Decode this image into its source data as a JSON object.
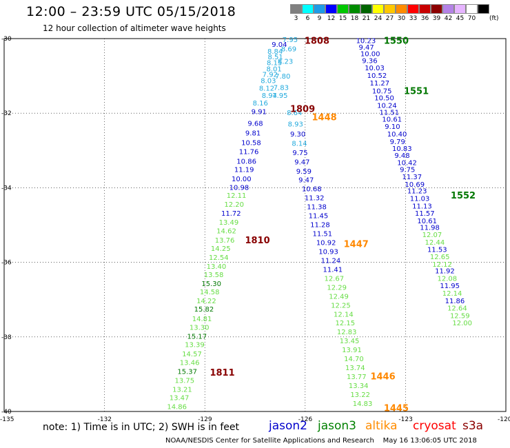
{
  "header": {
    "title": "12:00 – 23:59 UTC 05/15/2018",
    "subtitle": "12 hour collection of altimeter wave heights"
  },
  "legend": {
    "unit": "(ft)",
    "bins": [
      {
        "label": "3",
        "color": "#808080"
      },
      {
        "label": "6",
        "color": "#00ffff"
      },
      {
        "label": "9",
        "color": "#1e9be6"
      },
      {
        "label": "12",
        "color": "#0000ff"
      },
      {
        "label": "15",
        "color": "#00c800"
      },
      {
        "label": "18",
        "color": "#008c00"
      },
      {
        "label": "21",
        "color": "#006400"
      },
      {
        "label": "24",
        "color": "#ffff00"
      },
      {
        "label": "27",
        "color": "#ffc800"
      },
      {
        "label": "30",
        "color": "#ff8c00"
      },
      {
        "label": "33",
        "color": "#ff0000"
      },
      {
        "label": "36",
        "color": "#c80000"
      },
      {
        "label": "39",
        "color": "#8c0000"
      },
      {
        "label": "42",
        "color": "#b482e6"
      },
      {
        "label": "45",
        "color": "#e6b4ff"
      },
      {
        "label": "70",
        "color": "#ffffff"
      },
      {
        "label": "",
        "color": "#000000"
      }
    ]
  },
  "axes": {
    "lat_labels": [
      "-30",
      "-32",
      "-34",
      "-36",
      "-38",
      "-40"
    ],
    "lon_labels": [
      "-135",
      "-132",
      "-129",
      "-126",
      "-123",
      "-120"
    ]
  },
  "colors": {
    "jason2": "#0000cc",
    "jason3": "#008000",
    "altika": "#ff8c00",
    "cryosat": "#ff0000",
    "s3a": "#8b0000",
    "light_green": "#66dd44",
    "light_blue": "#22aadd",
    "label_green": "#007700",
    "time_orange": "#ff8800",
    "time_maroon": "#880000"
  },
  "time_labels": [
    {
      "text": "1808",
      "lat": -30.05,
      "lon": -126.02,
      "color": "#880000"
    },
    {
      "text": "1809",
      "lat": -31.88,
      "lon": -126.45,
      "color": "#880000"
    },
    {
      "text": "1810",
      "lat": -35.4,
      "lon": -127.8,
      "color": "#880000"
    },
    {
      "text": "1811",
      "lat": -38.95,
      "lon": -128.85,
      "color": "#880000"
    },
    {
      "text": "1550",
      "lat": -30.05,
      "lon": -123.65,
      "color": "#007700"
    },
    {
      "text": "1551",
      "lat": -31.4,
      "lon": -123.05,
      "color": "#007700"
    },
    {
      "text": "1552",
      "lat": -34.2,
      "lon": -121.65,
      "color": "#007700"
    },
    {
      "text": "1448",
      "lat": -32.1,
      "lon": -125.8,
      "color": "#ff8800"
    },
    {
      "text": "1447",
      "lat": -35.5,
      "lon": -124.85,
      "color": "#ff8800"
    },
    {
      "text": "1446",
      "lat": -39.05,
      "lon": -124.05,
      "color": "#ff8800"
    },
    {
      "text": "1445",
      "lat": -39.9,
      "lon": -123.65,
      "color": "#ff8800"
    }
  ],
  "tracks": [
    {
      "name": "jason2-left",
      "points": [
        [
          "9.04",
          -30.15,
          -127.0,
          "#0000cc"
        ],
        [
          "8.84",
          -30.33,
          -127.13,
          "#22aadd"
        ],
        [
          "8.51",
          -30.48,
          -127.12,
          "#22aadd"
        ],
        [
          "8.15",
          -30.64,
          -127.15,
          "#22aadd"
        ],
        [
          "8.01",
          -30.8,
          -127.16,
          "#22aadd"
        ],
        [
          "7.92",
          -30.95,
          -127.28,
          "#22aadd"
        ],
        [
          "8.03",
          -31.12,
          -127.33,
          "#22aadd"
        ],
        [
          "8.12",
          -31.32,
          -127.38,
          "#22aadd"
        ],
        [
          "8.94",
          -31.52,
          -127.3,
          "#22aadd"
        ],
        [
          "8.16",
          -31.72,
          -127.57,
          "#22aadd"
        ],
        [
          "9.91",
          -31.95,
          -127.61,
          "#0000cc"
        ],
        [
          "9.68",
          -32.26,
          -127.72,
          "#0000cc"
        ],
        [
          "9.81",
          -32.52,
          -127.79,
          "#0000cc"
        ],
        [
          "10.58",
          -32.78,
          -127.91,
          "#0000cc"
        ],
        [
          "11.76",
          -33.02,
          -127.98,
          "#0000cc"
        ],
        [
          "10.86",
          -33.28,
          -128.05,
          "#0000cc"
        ],
        [
          "11.19",
          -33.5,
          -128.12,
          "#0000cc"
        ],
        [
          "10.00",
          -33.75,
          -128.2,
          "#0000cc"
        ],
        [
          "10.98",
          -33.98,
          -128.27,
          "#0000cc"
        ],
        [
          "12.11",
          -34.2,
          -128.35,
          "#66dd44"
        ],
        [
          "12.20",
          -34.44,
          -128.42,
          "#66dd44"
        ],
        [
          "11.72",
          -34.68,
          -128.51,
          "#0000cc"
        ],
        [
          "13.49",
          -34.92,
          -128.58,
          "#66dd44"
        ],
        [
          "14.62",
          -35.15,
          -128.65,
          "#66dd44"
        ],
        [
          "13.76",
          -35.4,
          -128.7,
          "#66dd44"
        ],
        [
          "14.25",
          -35.62,
          -128.82,
          "#66dd44"
        ],
        [
          "12.54",
          -35.86,
          -128.88,
          "#66dd44"
        ],
        [
          "13.40",
          -36.1,
          -128.95,
          "#66dd44"
        ],
        [
          "13.58",
          -36.32,
          -129.03,
          "#66dd44"
        ],
        [
          "15.30",
          -36.56,
          -129.1,
          "#007700"
        ],
        [
          "14.58",
          -36.78,
          -129.15,
          "#66dd44"
        ],
        [
          "14.22",
          -37.02,
          -129.25,
          "#66dd44"
        ],
        [
          "15.82",
          -37.25,
          -129.32,
          "#007700"
        ],
        [
          "14.81",
          -37.5,
          -129.38,
          "#66dd44"
        ],
        [
          "13.30",
          -37.74,
          -129.46,
          "#66dd44"
        ],
        [
          "15.17",
          -37.98,
          -129.53,
          "#007700"
        ],
        [
          "13.39",
          -38.2,
          -129.6,
          "#66dd44"
        ],
        [
          "14.57",
          -38.45,
          -129.68,
          "#66dd44"
        ],
        [
          "13.46",
          -38.68,
          -129.75,
          "#66dd44"
        ],
        [
          "15.37",
          -38.92,
          -129.82,
          "#007700"
        ],
        [
          "13.75",
          -39.16,
          -129.9,
          "#66dd44"
        ],
        [
          "13.21",
          -39.4,
          -129.97,
          "#66dd44"
        ],
        [
          "13.47",
          -39.62,
          -130.06,
          "#66dd44"
        ],
        [
          "14.86",
          -39.86,
          -130.13,
          "#66dd44"
        ]
      ]
    },
    {
      "name": "cyan-top",
      "points": [
        [
          "7.95",
          -30.02,
          -126.68,
          "#22aadd"
        ],
        [
          "8.69",
          -30.27,
          -126.72,
          "#22aadd"
        ],
        [
          "8.23",
          -30.6,
          -126.82,
          "#22aadd"
        ],
        [
          "7.80",
          -31.0,
          -126.9,
          "#22aadd"
        ],
        [
          "7.83",
          -31.3,
          -126.95,
          "#22aadd"
        ],
        [
          "7.95",
          -31.52,
          -126.98,
          "#22aadd"
        ],
        [
          "8.64",
          -31.98,
          -126.55,
          "#22aadd"
        ],
        [
          "8.93",
          -32.28,
          -126.52,
          "#22aadd"
        ]
      ]
    },
    {
      "name": "altika-mid",
      "points": [
        [
          "9.30",
          -32.55,
          -126.45,
          "#0000cc"
        ],
        [
          "8.14",
          -32.8,
          -126.4,
          "#22aadd"
        ],
        [
          "9.75",
          -33.05,
          -126.38,
          "#0000cc"
        ],
        [
          "9.47",
          -33.3,
          -126.32,
          "#0000cc"
        ],
        [
          "9.59",
          -33.55,
          -126.27,
          "#0000cc"
        ],
        [
          "9.47",
          -33.78,
          -126.2,
          "#0000cc"
        ],
        [
          "10.68",
          -34.02,
          -126.1,
          "#0000cc"
        ],
        [
          "11.32",
          -34.26,
          -126.02,
          "#0000cc"
        ],
        [
          "11.38",
          -34.5,
          -125.95,
          "#0000cc"
        ],
        [
          "11.45",
          -34.74,
          -125.9,
          "#0000cc"
        ],
        [
          "11.28",
          -34.98,
          -125.85,
          "#0000cc"
        ],
        [
          "11.51",
          -35.22,
          -125.78,
          "#0000cc"
        ],
        [
          "10.92",
          -35.46,
          -125.67,
          "#0000cc"
        ],
        [
          "10.93",
          -35.7,
          -125.6,
          "#0000cc"
        ],
        [
          "11.24",
          -35.94,
          -125.53,
          "#0000cc"
        ],
        [
          "11.41",
          -36.18,
          -125.47,
          "#0000cc"
        ],
        [
          "12.67",
          -36.42,
          -125.43,
          "#66dd44"
        ],
        [
          "12.29",
          -36.66,
          -125.35,
          "#66dd44"
        ],
        [
          "12.49",
          -36.9,
          -125.29,
          "#66dd44"
        ],
        [
          "12.25",
          -37.14,
          -125.23,
          "#66dd44"
        ],
        [
          "12.14",
          -37.38,
          -125.15,
          "#66dd44"
        ],
        [
          "12.15",
          -37.62,
          -125.1,
          "#66dd44"
        ],
        [
          "12.83",
          -37.86,
          -125.05,
          "#66dd44"
        ],
        [
          "13.45",
          -38.1,
          -124.97,
          "#66dd44"
        ],
        [
          "13.91",
          -38.34,
          -124.9,
          "#66dd44"
        ],
        [
          "14.70",
          -38.58,
          -124.84,
          "#66dd44"
        ],
        [
          "13.74",
          -38.82,
          -124.8,
          "#66dd44"
        ],
        [
          "13.77",
          -39.06,
          -124.76,
          "#66dd44"
        ],
        [
          "13.34",
          -39.3,
          -124.7,
          "#66dd44"
        ],
        [
          "13.22",
          -39.54,
          -124.65,
          "#66dd44"
        ],
        [
          "14.83",
          -39.78,
          -124.58,
          "#66dd44"
        ]
      ]
    },
    {
      "name": "jason3-right",
      "points": [
        [
          "10.23",
          -30.05,
          -124.48,
          "#0000cc"
        ],
        [
          "9.47",
          -30.22,
          -124.4,
          "#0000cc"
        ],
        [
          "10.00",
          -30.4,
          -124.35,
          "#0000cc"
        ],
        [
          "9.36",
          -30.58,
          -124.3,
          "#0000cc"
        ],
        [
          "10.03",
          -30.78,
          -124.22,
          "#0000cc"
        ],
        [
          "10.52",
          -30.98,
          -124.15,
          "#0000cc"
        ],
        [
          "11.27",
          -31.18,
          -124.07,
          "#0000cc"
        ],
        [
          "10.75",
          -31.4,
          -124.0,
          "#0000cc"
        ],
        [
          "10.50",
          -31.58,
          -123.93,
          "#0000cc"
        ],
        [
          "10.24",
          -31.78,
          -123.85,
          "#0000cc"
        ],
        [
          "11.51",
          -31.97,
          -123.78,
          "#0000cc"
        ],
        [
          "10.61",
          -32.15,
          -123.7,
          "#0000cc"
        ],
        [
          "9.10",
          -32.35,
          -123.62,
          "#0000cc"
        ],
        [
          "10.40",
          -32.55,
          -123.55,
          "#0000cc"
        ],
        [
          "9.79",
          -32.75,
          -123.47,
          "#0000cc"
        ],
        [
          "10.83",
          -32.94,
          -123.4,
          "#0000cc"
        ],
        [
          "9.48",
          -33.12,
          -123.33,
          "#0000cc"
        ],
        [
          "10.42",
          -33.32,
          -123.25,
          "#0000cc"
        ],
        [
          "9.75",
          -33.5,
          -123.17,
          "#0000cc"
        ],
        [
          "11.37",
          -33.7,
          -123.1,
          "#0000cc"
        ],
        [
          "10.69",
          -33.9,
          -123.02,
          "#0000cc"
        ],
        [
          "11.23",
          -34.08,
          -122.95,
          "#0000cc"
        ],
        [
          "11.03",
          -34.28,
          -122.87,
          "#0000cc"
        ],
        [
          "11.13",
          -34.48,
          -122.8,
          "#0000cc"
        ],
        [
          "11.57",
          -34.68,
          -122.72,
          "#0000cc"
        ],
        [
          "10.61",
          -34.88,
          -122.65,
          "#0000cc"
        ],
        [
          "11.98",
          -35.06,
          -122.57,
          "#0000cc"
        ],
        [
          "12.07",
          -35.25,
          -122.5,
          "#66dd44"
        ],
        [
          "12.44",
          -35.45,
          -122.42,
          "#66dd44"
        ],
        [
          "11.53",
          -35.65,
          -122.35,
          "#0000cc"
        ],
        [
          "12.65",
          -35.84,
          -122.27,
          "#66dd44"
        ],
        [
          "12.12",
          -36.04,
          -122.2,
          "#66dd44"
        ],
        [
          "11.92",
          -36.22,
          -122.12,
          "#0000cc"
        ],
        [
          "12.08",
          -36.42,
          -122.05,
          "#66dd44"
        ],
        [
          "11.95",
          -36.62,
          -121.97,
          "#0000cc"
        ],
        [
          "12.14",
          -36.82,
          -121.9,
          "#66dd44"
        ],
        [
          "11.86",
          -37.02,
          -121.82,
          "#0000cc"
        ],
        [
          "12.64",
          -37.22,
          -121.75,
          "#66dd44"
        ],
        [
          "12.59",
          -37.42,
          -121.67,
          "#66dd44"
        ],
        [
          "12.00",
          -37.62,
          -121.6,
          "#66dd44"
        ]
      ]
    }
  ],
  "footer": {
    "note": "note: 1) Time is in UTC; 2) SWH is in feet",
    "satellites": [
      {
        "name": "jason2",
        "color": "#0000cc",
        "x": 390
      },
      {
        "name": "jason3",
        "color": "#008000",
        "x": 461
      },
      {
        "name": "altika",
        "color": "#ff8c00",
        "x": 530
      },
      {
        "name": "cryosat",
        "color": "#ff0000",
        "x": 599
      },
      {
        "name": "s3a",
        "color": "#8b0000",
        "x": 671
      }
    ],
    "credit": "NOAA/NESDIS Center for Satellite Applications and Research    May 16 13:06:05 UTC 2018"
  }
}
